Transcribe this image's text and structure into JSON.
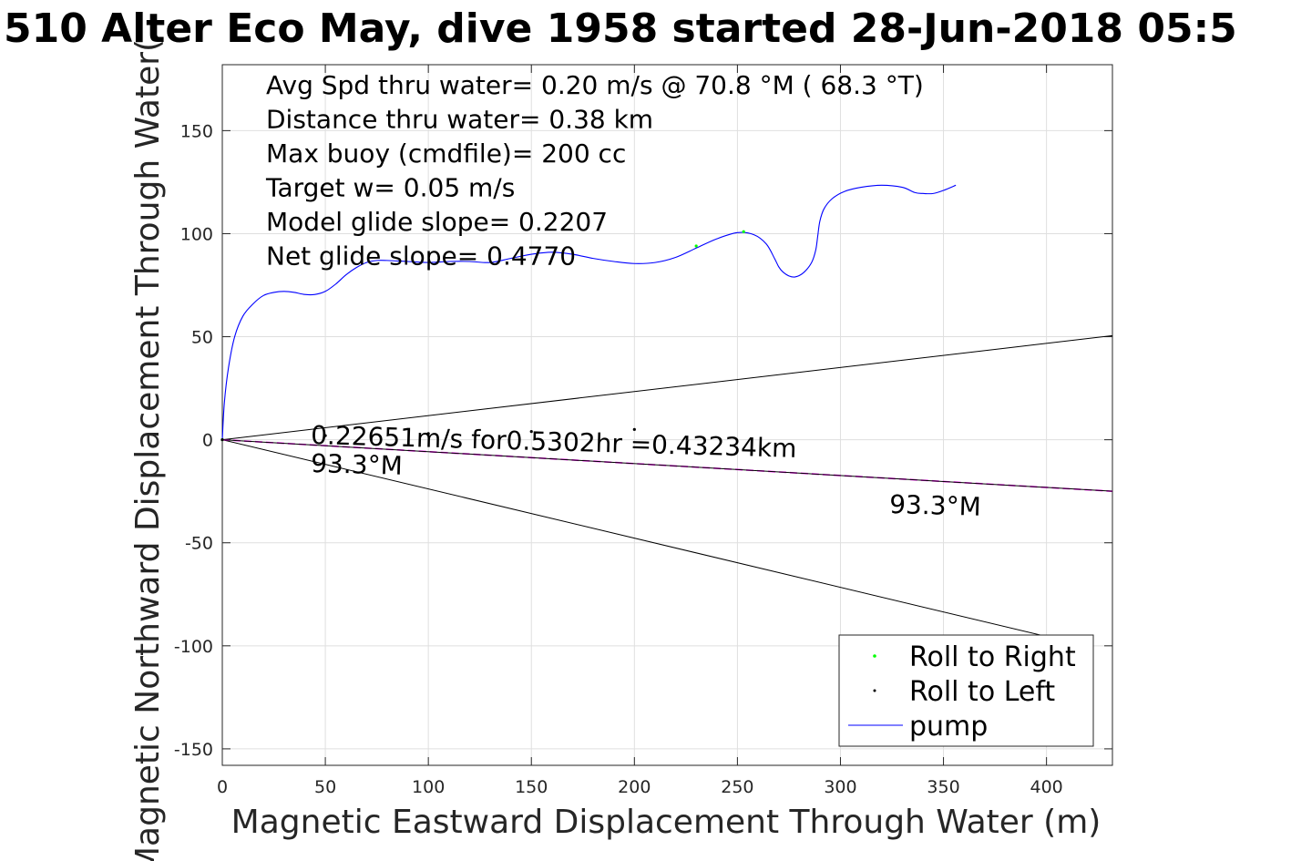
{
  "chart_data": {
    "type": "line",
    "title": "510 Alter Eco May, dive 1958 started 28-Jun-2018 05:5",
    "xlabel": "Magnetic Eastward Displacement Through Water (m)",
    "ylabel": "Magnetic Northward Displacement Through Water(",
    "xlim": [
      0,
      432
    ],
    "ylim": [
      -158,
      182
    ],
    "xticks": [
      0,
      50,
      100,
      150,
      200,
      250,
      300,
      350,
      400
    ],
    "yticks": [
      -150,
      -100,
      -50,
      0,
      50,
      100,
      150
    ],
    "grid": true,
    "legend_position": "bottom-right",
    "legend": [
      {
        "label": "Roll to Right",
        "marker": "dot",
        "color": "#00ff00"
      },
      {
        "label": "Roll to Left",
        "marker": "dot",
        "color": "#000000"
      },
      {
        "label": "pump",
        "marker": "line",
        "color": "#0000ff"
      }
    ],
    "stats": [
      "Avg Spd thru water=  0.20 m/s @  70.8 °M ( 68.3 °T)",
      "Distance thru water=  0.38 km",
      "Max buoy (cmdfile)= 200 cc",
      "Target w= 0.05 m/s",
      "Model glide slope= 0.2207",
      "Net glide slope= 0.4770"
    ],
    "annotations": {
      "current_text": "0.22651m/s for0.5302hr =0.43234km",
      "heading_near": "93.3°M",
      "heading_far": "93.3°M"
    },
    "series": [
      {
        "name": "pump",
        "color": "#0000ff",
        "x": [
          0,
          1,
          3,
          6,
          10,
          15,
          20,
          25,
          30,
          35,
          40,
          45,
          50,
          55,
          60,
          65,
          70,
          75,
          80,
          90,
          100,
          110,
          120,
          130,
          140,
          150,
          160,
          170,
          180,
          190,
          200,
          210,
          220,
          230,
          240,
          250,
          258,
          264,
          268,
          270,
          272,
          275,
          278,
          282,
          286,
          288,
          289,
          290,
          292,
          296,
          302,
          310,
          320,
          330,
          336,
          340,
          345,
          350,
          356
        ],
        "y": [
          0,
          18,
          35,
          50,
          60,
          66,
          70,
          71.5,
          72,
          71.5,
          70.5,
          70.5,
          72,
          75.5,
          80,
          83.5,
          86,
          87,
          87,
          86.5,
          86,
          86.5,
          86.5,
          86,
          88,
          90,
          91,
          90,
          88,
          86.5,
          85.5,
          86,
          88.5,
          93,
          97.5,
          100.5,
          99.5,
          95,
          88,
          84,
          81.5,
          79.5,
          79,
          81,
          86,
          92,
          99,
          106,
          112,
          117,
          120.5,
          122.5,
          123.5,
          122.5,
          120,
          119.5,
          119.5,
          121,
          123.5
        ]
      },
      {
        "name": "Roll to Right",
        "color": "#00ff00",
        "x": [
          230,
          253,
          0
        ],
        "y": [
          94,
          101,
          0
        ]
      },
      {
        "name": "Roll to Left",
        "color": "#000000",
        "x": [
          0,
          50,
          100,
          150,
          200
        ],
        "y": [
          0,
          2,
          3,
          4,
          5
        ]
      }
    ],
    "reference_lines": [
      {
        "name": "upper",
        "color": "#000000",
        "x": [
          0,
          432
        ],
        "y": [
          0,
          50.5
        ]
      },
      {
        "name": "lower",
        "color": "#000000",
        "x": [
          0,
          400
        ],
        "y": [
          0,
          -95.5
        ]
      },
      {
        "name": "current",
        "color": "#ff00ff",
        "dashed": true,
        "x": [
          0,
          432
        ],
        "y": [
          0,
          -25
        ]
      },
      {
        "name": "current-center",
        "color": "#000000",
        "x": [
          0,
          432
        ],
        "y": [
          0,
          -25
        ]
      }
    ]
  }
}
